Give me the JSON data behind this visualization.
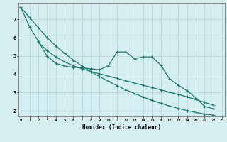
{
  "xlabel": "Humidex (Indice chaleur)",
  "line_color": "#1e7b6e",
  "bg_color": "#d5eef0",
  "grid_color": "#b5d5d8",
  "xlim": [
    -0.3,
    23.3
  ],
  "ylim": [
    1.7,
    7.9
  ],
  "yticks": [
    2,
    3,
    4,
    5,
    6,
    7
  ],
  "xticks": [
    0,
    1,
    2,
    3,
    4,
    5,
    6,
    7,
    8,
    9,
    10,
    11,
    12,
    13,
    14,
    15,
    16,
    17,
    18,
    19,
    20,
    21,
    22,
    23
  ],
  "figsize": [
    3.2,
    2.0
  ],
  "dpi": 100,
  "lineA_x": [
    0,
    1,
    2,
    3,
    4,
    5,
    6,
    7,
    8,
    9,
    10,
    11,
    12,
    13,
    14,
    15,
    16,
    17,
    18,
    19,
    20,
    21,
    22
  ],
  "lineA_y": [
    7.65,
    6.6,
    5.8,
    5.0,
    4.6,
    4.45,
    4.38,
    4.35,
    4.3,
    4.25,
    4.47,
    5.22,
    5.22,
    4.85,
    4.95,
    4.95,
    4.5,
    3.75,
    3.4,
    3.1,
    2.72,
    2.25,
    2.12
  ],
  "lineB_x": [
    2,
    3,
    4,
    5,
    6,
    7,
    8,
    9,
    10,
    11,
    12,
    13,
    14,
    15,
    16,
    17,
    18,
    19,
    20,
    21,
    22
  ],
  "lineB_y": [
    5.75,
    5.3,
    4.95,
    4.68,
    4.47,
    4.3,
    4.15,
    4.03,
    3.9,
    3.78,
    3.65,
    3.52,
    3.4,
    3.28,
    3.15,
    3.02,
    2.9,
    2.77,
    2.62,
    2.47,
    2.32
  ],
  "lineC_x": [
    0,
    1,
    2,
    3,
    4,
    5,
    6,
    7,
    8,
    9,
    10,
    11,
    12,
    13,
    14,
    15,
    16,
    17,
    18,
    19,
    20,
    21,
    22
  ],
  "lineC_y": [
    7.65,
    7.1,
    6.55,
    6.0,
    5.55,
    5.15,
    4.78,
    4.45,
    4.15,
    3.88,
    3.62,
    3.38,
    3.15,
    2.95,
    2.76,
    2.58,
    2.42,
    2.27,
    2.14,
    2.02,
    1.92,
    1.83,
    1.78
  ]
}
